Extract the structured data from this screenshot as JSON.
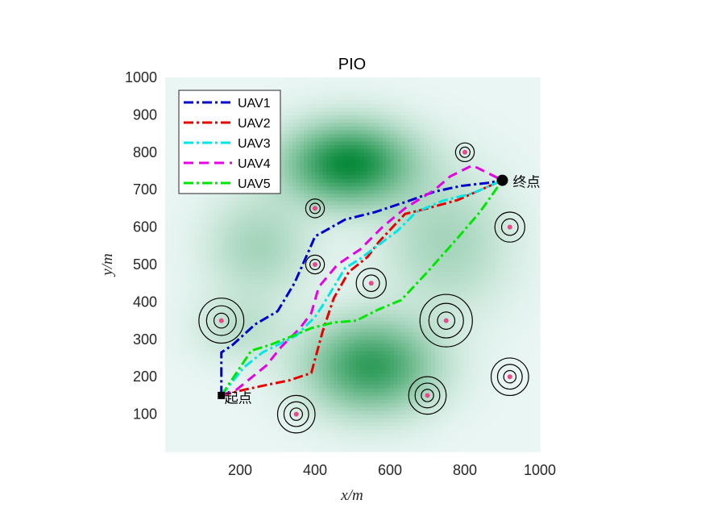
{
  "chart_data": {
    "type": "line",
    "title": "PIO",
    "xlabel": "x/m",
    "ylabel": "y/m",
    "xlim": [
      0,
      1000
    ],
    "ylim": [
      0,
      1000
    ],
    "xticks": [
      200,
      400,
      600,
      800,
      1000
    ],
    "yticks": [
      100,
      200,
      300,
      400,
      500,
      600,
      700,
      800,
      900,
      1000
    ],
    "grid": false,
    "legend_position": "top-left",
    "start": {
      "x": 150,
      "y": 150,
      "label": "起点"
    },
    "end": {
      "x": 900,
      "y": 725,
      "label": "终点"
    },
    "series": [
      {
        "name": "UAV1",
        "color": "#0000cc",
        "dash": "dashdot",
        "points": [
          [
            150,
            150
          ],
          [
            150,
            265
          ],
          [
            180,
            285
          ],
          [
            240,
            340
          ],
          [
            300,
            375
          ],
          [
            345,
            450
          ],
          [
            385,
            540
          ],
          [
            400,
            575
          ],
          [
            480,
            620
          ],
          [
            560,
            640
          ],
          [
            650,
            670
          ],
          [
            720,
            695
          ],
          [
            790,
            710
          ],
          [
            860,
            718
          ],
          [
            900,
            725
          ]
        ]
      },
      {
        "name": "UAV2",
        "color": "#e60000",
        "dash": "dashdot",
        "points": [
          [
            150,
            150
          ],
          [
            210,
            165
          ],
          [
            280,
            180
          ],
          [
            330,
            190
          ],
          [
            390,
            210
          ],
          [
            420,
            320
          ],
          [
            450,
            410
          ],
          [
            490,
            480
          ],
          [
            540,
            520
          ],
          [
            570,
            560
          ],
          [
            640,
            635
          ],
          [
            700,
            650
          ],
          [
            780,
            672
          ],
          [
            900,
            725
          ]
        ]
      },
      {
        "name": "UAV3",
        "color": "#00e6e6",
        "dash": "dashdot",
        "points": [
          [
            150,
            150
          ],
          [
            210,
            225
          ],
          [
            260,
            265
          ],
          [
            300,
            285
          ],
          [
            350,
            310
          ],
          [
            400,
            360
          ],
          [
            420,
            390
          ],
          [
            450,
            440
          ],
          [
            480,
            490
          ],
          [
            520,
            515
          ],
          [
            580,
            560
          ],
          [
            620,
            590
          ],
          [
            670,
            640
          ],
          [
            740,
            670
          ],
          [
            820,
            690
          ],
          [
            900,
            725
          ]
        ]
      },
      {
        "name": "UAV4",
        "color": "#e600e6",
        "dash": "dashed",
        "points": [
          [
            150,
            150
          ],
          [
            190,
            165
          ],
          [
            270,
            230
          ],
          [
            310,
            280
          ],
          [
            360,
            330
          ],
          [
            390,
            370
          ],
          [
            410,
            440
          ],
          [
            460,
            500
          ],
          [
            520,
            540
          ],
          [
            580,
            600
          ],
          [
            640,
            650
          ],
          [
            720,
            700
          ],
          [
            760,
            735
          ],
          [
            820,
            765
          ],
          [
            860,
            745
          ],
          [
            900,
            725
          ]
        ]
      },
      {
        "name": "UAV5",
        "color": "#00e600",
        "dash": "dashdot",
        "points": [
          [
            150,
            150
          ],
          [
            230,
            270
          ],
          [
            280,
            285
          ],
          [
            330,
            305
          ],
          [
            390,
            330
          ],
          [
            450,
            345
          ],
          [
            510,
            350
          ],
          [
            570,
            380
          ],
          [
            630,
            405
          ],
          [
            700,
            480
          ],
          [
            780,
            570
          ],
          [
            840,
            640
          ],
          [
            900,
            725
          ]
        ]
      }
    ],
    "threats": [
      {
        "x": 150,
        "y": 350,
        "r": 60
      },
      {
        "x": 400,
        "y": 650,
        "r": 25
      },
      {
        "x": 400,
        "y": 500,
        "r": 25
      },
      {
        "x": 550,
        "y": 450,
        "r": 40
      },
      {
        "x": 800,
        "y": 800,
        "r": 25
      },
      {
        "x": 920,
        "y": 600,
        "r": 40
      },
      {
        "x": 750,
        "y": 350,
        "r": 70
      },
      {
        "x": 920,
        "y": 200,
        "r": 50
      },
      {
        "x": 700,
        "y": 150,
        "r": 50
      },
      {
        "x": 350,
        "y": 100,
        "r": 50
      }
    ],
    "terrain_peaks": [
      {
        "x": 490,
        "y": 770,
        "sx": 110,
        "sy": 70,
        "a": 1.0
      },
      {
        "x": 550,
        "y": 230,
        "sx": 110,
        "sy": 80,
        "a": 0.8
      },
      {
        "x": 250,
        "y": 550,
        "sx": 90,
        "sy": 90,
        "a": 0.25
      },
      {
        "x": 750,
        "y": 560,
        "sx": 110,
        "sy": 120,
        "a": 0.25
      },
      {
        "x": 200,
        "y": 330,
        "sx": 80,
        "sy": 60,
        "a": 0.15
      }
    ],
    "colors": {
      "terrain_low": "#eaf6f4",
      "terrain_high": "#0a8a3c",
      "threat_center": "#e64a8a"
    }
  }
}
